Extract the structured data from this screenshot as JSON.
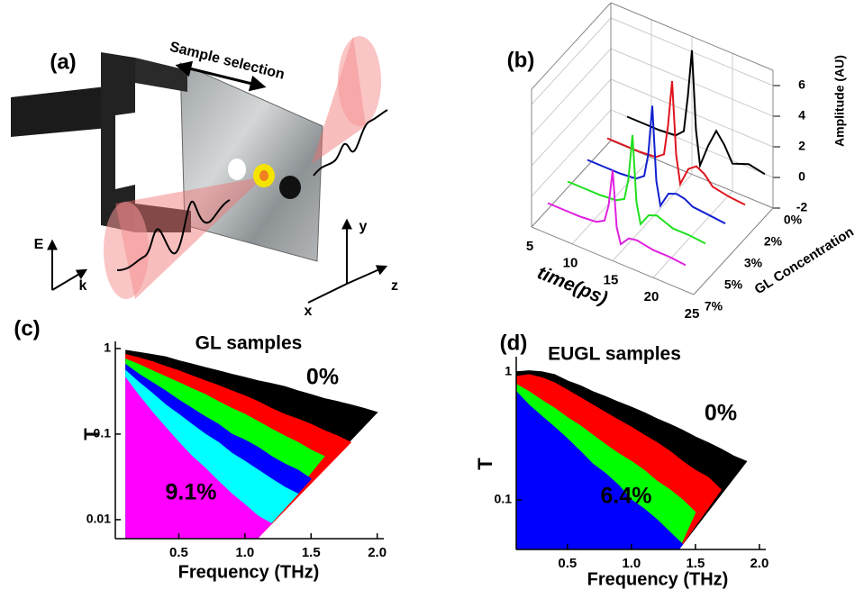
{
  "diagram": {
    "label": "(a)",
    "arrow_label": "Sample selection",
    "axes_left": [
      "E",
      "k"
    ],
    "axes_right": [
      "y",
      "x",
      "z"
    ]
  },
  "chart_data": [
    {
      "type": "waterfall",
      "panel": "(b)",
      "x_label": "time(ps)",
      "y_label": "Amplitude (AU)",
      "z_label": "GL Concentration",
      "x": [
        7,
        9,
        11,
        13,
        14,
        14.5,
        15,
        15.5,
        16,
        17,
        18,
        19,
        20,
        22,
        24
      ],
      "xlim": [
        5,
        25
      ],
      "xticks": [
        5,
        10,
        15,
        20,
        25
      ],
      "ylim": [
        -2,
        7
      ],
      "yticks": [
        -2,
        0,
        2,
        4,
        6
      ],
      "series": [
        {
          "name": "0%",
          "color": "#000000",
          "values": [
            0,
            0,
            0,
            0.1,
            0.6,
            3,
            6.1,
            1,
            -1.2,
            0.3,
            1.5,
            0.8,
            -0.2,
            0.2,
            0
          ]
        },
        {
          "name": "2%",
          "color": "#e0141e",
          "values": [
            0,
            0,
            0,
            0.1,
            0.5,
            2.5,
            5.5,
            0.8,
            -1,
            0.2,
            0.6,
            0.3,
            -0.3,
            -0.5,
            -0.6
          ]
        },
        {
          "name": "3%",
          "color": "#1020d0",
          "values": [
            0,
            0,
            0,
            0.1,
            0.5,
            2,
            5.3,
            0.5,
            -1,
            0,
            0.2,
            0.1,
            -0.2,
            -0.3,
            -0.4
          ]
        },
        {
          "name": "5%",
          "color": "#20e020",
          "values": [
            0,
            0,
            0,
            0.1,
            0.4,
            1.8,
            4.8,
            0.5,
            -0.8,
            0,
            0.2,
            0,
            -0.2,
            -0.2,
            -0.3
          ]
        },
        {
          "name": "7%",
          "color": "#e020e0",
          "values": [
            0,
            0,
            0,
            0.1,
            0.4,
            1.5,
            3.9,
            0.3,
            -0.7,
            -0.1,
            0,
            -0.1,
            -0.2,
            -0.2,
            -0.3
          ]
        }
      ]
    },
    {
      "type": "area",
      "panel": "(c)",
      "title": "GL samples",
      "x_label": "Frequency (THz)",
      "y_label": "T",
      "log_y": true,
      "annotations": [
        "0%",
        "9.1%"
      ],
      "x": [
        0.1,
        0.2,
        0.3,
        0.4,
        0.5,
        0.6,
        0.7,
        0.8,
        0.9,
        1.0,
        1.1,
        1.2,
        1.3,
        1.4,
        1.5,
        1.6,
        1.7,
        1.8,
        1.9,
        2.0
      ],
      "xlim": [
        0.02,
        2.05
      ],
      "xticks": [
        0.5,
        {
          "value": 1,
          "label": "1.0"
        },
        1.5,
        {
          "value": 2,
          "label": "2.0"
        }
      ],
      "ylim": [
        0.006,
        1.1
      ],
      "yticks": [
        0.01,
        0.1,
        1
      ],
      "series": [
        {
          "color": "#000000",
          "values": [
            0.95,
            0.9,
            0.85,
            0.8,
            0.72,
            0.66,
            0.6,
            0.55,
            0.5,
            0.46,
            0.42,
            0.39,
            0.36,
            0.32,
            0.29,
            0.26,
            0.24,
            0.22,
            0.2,
            0.18
          ]
        },
        {
          "color": "#ff0000",
          "values": [
            0.85,
            0.78,
            0.7,
            0.62,
            0.55,
            0.48,
            0.42,
            0.37,
            0.32,
            0.28,
            0.24,
            0.2,
            0.17,
            0.15,
            0.13,
            0.11,
            0.095,
            0.08,
            null,
            null
          ]
        },
        {
          "color": "#00ff00",
          "values": [
            0.75,
            0.65,
            0.55,
            0.47,
            0.4,
            0.34,
            0.29,
            0.24,
            0.2,
            0.17,
            0.14,
            0.115,
            0.095,
            0.08,
            0.065,
            0.055,
            null,
            null,
            null,
            null
          ]
        },
        {
          "color": "#0000ff",
          "values": [
            0.65,
            0.5,
            0.4,
            0.32,
            0.25,
            0.2,
            0.16,
            0.13,
            0.1,
            0.085,
            0.07,
            0.055,
            0.045,
            0.038,
            0.03,
            null,
            null,
            null,
            null,
            null
          ]
        },
        {
          "color": "#00ffff",
          "values": [
            0.55,
            0.4,
            0.3,
            0.22,
            0.17,
            0.13,
            0.1,
            0.08,
            0.06,
            0.048,
            0.038,
            0.03,
            0.024,
            0.02,
            null,
            null,
            null,
            null,
            null,
            null
          ]
        },
        {
          "color": "#ff00ff",
          "values": [
            0.45,
            0.28,
            0.18,
            0.12,
            0.08,
            0.055,
            0.04,
            0.028,
            0.02,
            0.015,
            0.011,
            0.009,
            null,
            null,
            null,
            null,
            null,
            null,
            null,
            null
          ]
        }
      ]
    },
    {
      "type": "area",
      "panel": "(d)",
      "title": "EUGL samples",
      "x_label": "Frequency (THz)",
      "y_label": "T",
      "log_y": true,
      "annotations": [
        "0%",
        "6.4%"
      ],
      "x": [
        0.1,
        0.2,
        0.3,
        0.4,
        0.5,
        0.6,
        0.7,
        0.8,
        0.9,
        1.0,
        1.1,
        1.2,
        1.3,
        1.4,
        1.5,
        1.6,
        1.7,
        1.8,
        1.9,
        2.0
      ],
      "xlim": [
        0.1,
        2.05
      ],
      "xticks": [
        0.5,
        {
          "value": 1,
          "label": "1.0"
        },
        1.5,
        {
          "value": 2,
          "label": "2.0"
        }
      ],
      "ylim": [
        0.041,
        1.23
      ],
      "yticks": [
        0.1,
        1
      ],
      "series": [
        {
          "color": "#000000",
          "values": [
            1.0,
            1.02,
            1.0,
            0.95,
            0.85,
            0.78,
            0.7,
            0.64,
            0.58,
            0.53,
            0.48,
            0.43,
            0.39,
            0.35,
            0.31,
            0.28,
            0.25,
            0.22,
            0.2,
            null
          ]
        },
        {
          "color": "#ff0000",
          "values": [
            0.92,
            0.95,
            0.9,
            0.82,
            0.72,
            0.63,
            0.55,
            0.48,
            0.42,
            0.37,
            0.32,
            0.28,
            0.24,
            0.2,
            0.17,
            0.15,
            0.12,
            null,
            null,
            null
          ]
        },
        {
          "color": "#00ff00",
          "values": [
            0.8,
            0.7,
            0.6,
            0.52,
            0.44,
            0.38,
            0.32,
            0.27,
            0.23,
            0.2,
            0.17,
            0.14,
            0.12,
            0.1,
            0.08,
            null,
            null,
            null,
            null,
            null
          ]
        },
        {
          "color": "#0000ff",
          "values": [
            0.7,
            0.55,
            0.45,
            0.37,
            0.3,
            0.24,
            0.19,
            0.16,
            0.13,
            0.1,
            0.085,
            0.07,
            0.056,
            0.045,
            null,
            null,
            null,
            null,
            null,
            null
          ]
        }
      ]
    }
  ]
}
